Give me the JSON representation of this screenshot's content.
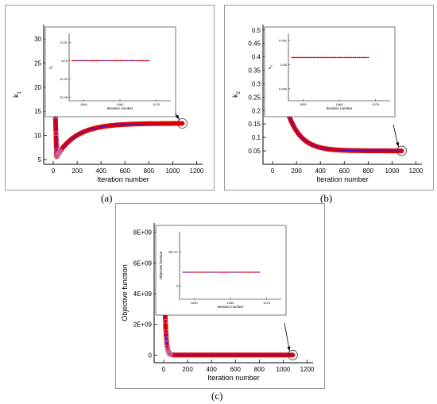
{
  "chart_data": [
    {
      "id": "a",
      "type": "line",
      "caption": "(a)",
      "xlabel": "Iteration number",
      "ylabel": "k",
      "ylabel_sub": "1",
      "xlim": [
        -80,
        1250
      ],
      "ylim": [
        4,
        33
      ],
      "xticks": [
        0,
        200,
        400,
        600,
        800,
        1000,
        1200
      ],
      "yticks": [
        5,
        10,
        15,
        20,
        25,
        30
      ],
      "x_end": 1080,
      "y_start": 30,
      "y_min": 5.6,
      "y_min_at": 28,
      "y_final": 12.5,
      "growth_rate": 0.006,
      "series_color": "#e60000",
      "line_color": "#1a1aff",
      "marker_color": "#cc6699",
      "inset": {
        "ylabel": "k",
        "ylabel_sub": "1",
        "xlabel": "Iteration number",
        "xticks": [
          1050,
          1060,
          1070
        ],
        "yticks": [
          "12.48",
          "12.49",
          "12.5",
          "12.51"
        ],
        "xlim": [
          1046,
          1074
        ],
        "ylim": [
          12.478,
          12.515
        ],
        "x_range": [
          1047,
          1068
        ],
        "value": 12.5
      }
    },
    {
      "id": "b",
      "type": "line",
      "caption": "(b)",
      "xlabel": "Iteration number",
      "ylabel": "k",
      "ylabel_sub": "2",
      "xlim": [
        -80,
        1250
      ],
      "ylim": [
        0.0,
        0.52
      ],
      "xticks": [
        0,
        200,
        400,
        600,
        800,
        1000,
        1200
      ],
      "yticks": [
        "0.05",
        "0.1",
        "0.15",
        "0.2",
        "0.25",
        "0.3",
        "0.35",
        "0.4",
        "0.45",
        "0.5"
      ],
      "x_end": 1080,
      "y_start": 0.5,
      "y_min": 0.05,
      "y_min_at": 0,
      "y_final": 0.05,
      "decay_rate": 0.009,
      "series_color": "#e60000",
      "line_color": "#1a1aff",
      "marker_color": "#cc6699",
      "inset": {
        "ylabel": "k",
        "ylabel_sub": "2",
        "xlabel": "Iteration number",
        "xticks": [
          1050,
          1060,
          1070
        ],
        "yticks": [
          "0.049",
          "0.05",
          "0.051"
        ],
        "xlim": [
          1046,
          1074
        ],
        "ylim": [
          0.0485,
          0.0513
        ],
        "x_range": [
          1047,
          1068
        ],
        "value": 0.0503
      }
    },
    {
      "id": "c",
      "type": "line",
      "caption": "(c)",
      "xlabel": "Iteration number",
      "ylabel": "Objective function",
      "xlim": [
        -80,
        1250
      ],
      "ylim": [
        -500000000,
        8600000000
      ],
      "xticks": [
        0,
        200,
        400,
        600,
        800,
        1000,
        1200
      ],
      "yticks": [
        "0",
        "2E+09",
        "4E+09",
        "6E+09",
        "8E+09"
      ],
      "ytick_values": [
        0,
        2000000000,
        4000000000,
        6000000000,
        8000000000
      ],
      "x_end": 1080,
      "y_start": 8100000000,
      "y_min": 0,
      "y_min_at": 0,
      "y_final": 0,
      "decay_rate": 0.09,
      "series_color": "#e60000",
      "line_color": "#1a1aff",
      "marker_color": "#cc6699",
      "inset": {
        "ylabel": "Objective function",
        "xlabel": "Iteration number",
        "xticks": [
          1050,
          1060,
          1070
        ],
        "yticks": [
          "0",
          "5E+07"
        ],
        "xlim": [
          1046,
          1074
        ],
        "ylim": [
          -20000000,
          80000000
        ],
        "x_range": [
          1047,
          1068
        ],
        "value": 20000000
      }
    }
  ]
}
